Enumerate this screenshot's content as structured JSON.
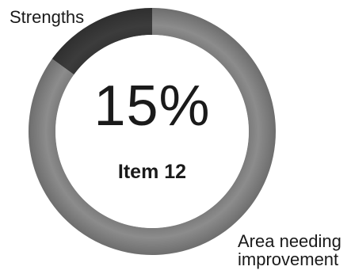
{
  "chart_data": {
    "type": "pie",
    "style": "donut",
    "center_value": "15%",
    "center_label": "Item 12",
    "segments": [
      {
        "label": "Strengths",
        "value": 15,
        "color": "#3c3c3c"
      },
      {
        "label": "Area needing improvement",
        "value": 85,
        "color": "#8c8c8c"
      }
    ]
  },
  "labels": {
    "strengths": "Strengths",
    "improvement_line1": "Area needing",
    "improvement_line2": "improvement"
  },
  "colors": {
    "strengths": "#3c3c3c",
    "improvement": "#8c8c8c",
    "text": "#1a1a1a"
  }
}
